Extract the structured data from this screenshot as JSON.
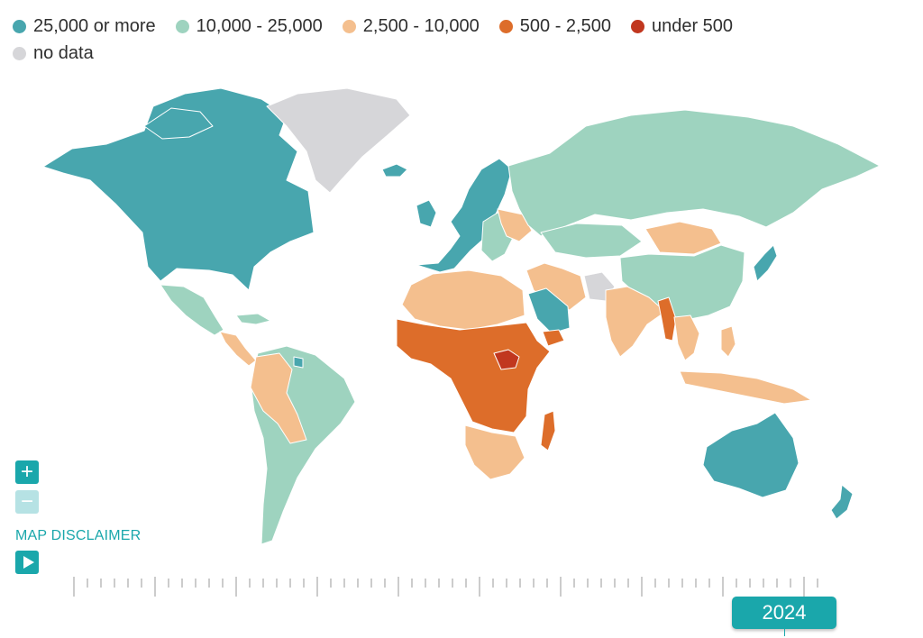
{
  "legend": {
    "items": [
      {
        "label": "25,000 or more",
        "color": "#48a6ae"
      },
      {
        "label": "10,000 - 25,000",
        "color": "#9ed3bf"
      },
      {
        "label": "2,500 - 10,000",
        "color": "#f4bf8e"
      },
      {
        "label": "500 - 2,500",
        "color": "#dd6d2a"
      },
      {
        "label": "under 500",
        "color": "#c1371f"
      },
      {
        "label": "no data",
        "color": "#d6d6d9"
      }
    ]
  },
  "map": {
    "regions": [
      {
        "name": "North America",
        "category": "25,000 or more"
      },
      {
        "name": "Greenland",
        "category": "no data"
      },
      {
        "name": "Mexico",
        "category": "10,000 - 25,000"
      },
      {
        "name": "Central America",
        "category": "2,500 - 10,000"
      },
      {
        "name": "South America",
        "category": "10,000 - 25,000"
      },
      {
        "name": "Andes",
        "category": "2,500 - 10,000"
      },
      {
        "name": "Western Europe",
        "category": "25,000 or more"
      },
      {
        "name": "Eastern Europe",
        "category": "10,000 - 25,000"
      },
      {
        "name": "Ukraine",
        "category": "2,500 - 10,000"
      },
      {
        "name": "Russia",
        "category": "10,000 - 25,000"
      },
      {
        "name": "North Africa",
        "category": "2,500 - 10,000"
      },
      {
        "name": "Saudi Arabia",
        "category": "25,000 or more"
      },
      {
        "name": "Middle East",
        "category": "2,500 - 10,000"
      },
      {
        "name": "Iran",
        "category": "2,500 - 10,000"
      },
      {
        "name": "Afghanistan",
        "category": "no data"
      },
      {
        "name": "Sub-Saharan Africa",
        "category": "500 - 2,500"
      },
      {
        "name": "South Sudan",
        "category": "under 500"
      },
      {
        "name": "Southern Africa",
        "category": "2,500 - 10,000"
      },
      {
        "name": "Madagascar",
        "category": "500 - 2,500"
      },
      {
        "name": "India",
        "category": "2,500 - 10,000"
      },
      {
        "name": "China",
        "category": "10,000 - 25,000"
      },
      {
        "name": "Mongolia",
        "category": "2,500 - 10,000"
      },
      {
        "name": "Myanmar",
        "category": "500 - 2,500"
      },
      {
        "name": "Japan",
        "category": "25,000 or more"
      },
      {
        "name": "Southeast Asia",
        "category": "2,500 - 10,000"
      },
      {
        "name": "Australia",
        "category": "25,000 or more"
      },
      {
        "name": "New Zealand",
        "category": "25,000 or more"
      }
    ]
  },
  "controls": {
    "zoom_in": "+",
    "zoom_out": "−",
    "disclaimer": "MAP DISCLAIMER",
    "year": "2024"
  },
  "timeline": {
    "tick_count": 56
  }
}
